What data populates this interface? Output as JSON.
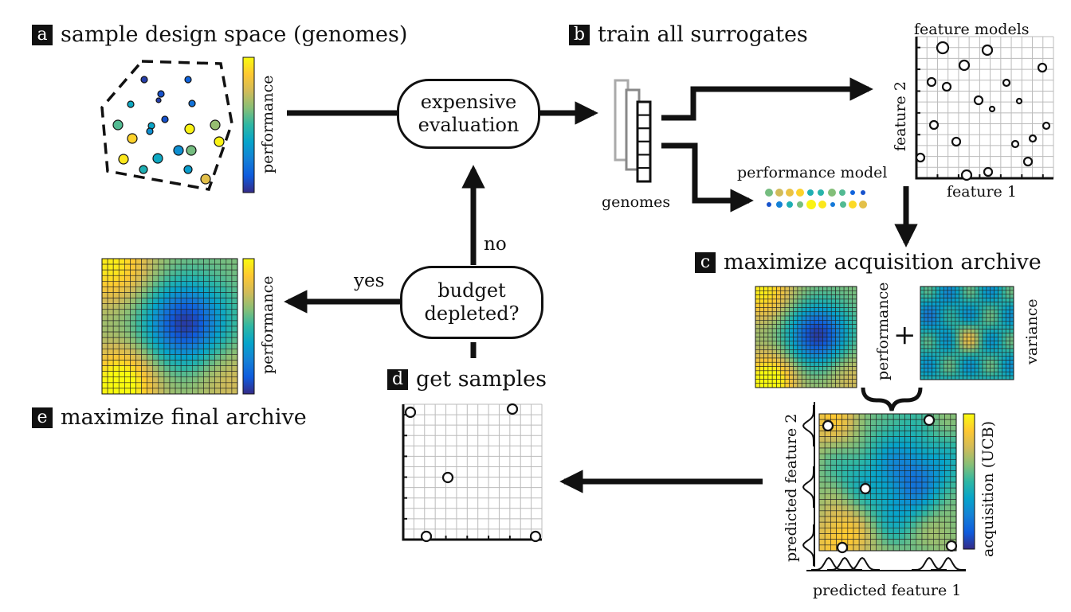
{
  "panels": {
    "a": {
      "letter": "a",
      "title": "sample design space (genomes)",
      "colorbar_label": "performance"
    },
    "b": {
      "letter": "b",
      "title": "train all surrogates",
      "genomes_label": "genomes",
      "performance_model_label": "performance model",
      "feature_models_label": "feature models",
      "feature1_label": "feature 1",
      "feature2_label": "feature 2"
    },
    "c": {
      "letter": "c",
      "title": "maximize acquisition archive",
      "performance_label": "performance",
      "variance_label": "variance",
      "plus": "+",
      "acquisition_label": "acquisition (UCB)",
      "pred_feature1_label": "predicted feature 1",
      "pred_feature2_label": "predicted feature 2"
    },
    "d": {
      "letter": "d",
      "title": "get samples"
    },
    "e": {
      "letter": "e",
      "title": "maximize final archive",
      "colorbar_label": "performance"
    }
  },
  "nodes": {
    "expensive_evaluation": "expensive\nevaluation",
    "budget_depleted": "budget\ndepleted?"
  },
  "edges": {
    "yes": "yes",
    "no": "no"
  },
  "colors": {
    "parula": [
      "#352a87",
      "#0f5cdd",
      "#1481d6",
      "#06a4ca",
      "#2eb7a4",
      "#87bf77",
      "#d1bb59",
      "#fec832",
      "#f9fb0e"
    ]
  }
}
